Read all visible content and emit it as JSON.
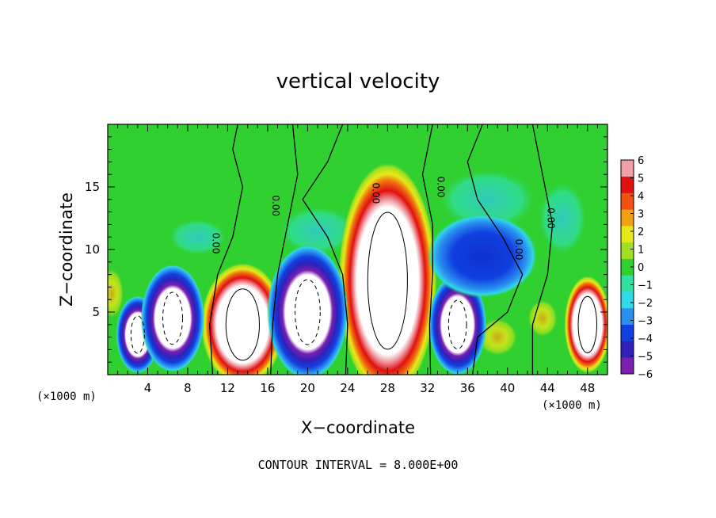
{
  "chart_data": {
    "type": "heatmap",
    "title": "vertical velocity",
    "xlabel": "X−coordinate",
    "ylabel": "Z−coordinate",
    "x_unit_label": "(×1000 m)",
    "y_unit_label": "(×1000 m)",
    "xlim": [
      0,
      50
    ],
    "ylim": [
      0,
      20
    ],
    "x_ticks": [
      4,
      8,
      12,
      16,
      20,
      24,
      28,
      32,
      36,
      40,
      44,
      48
    ],
    "y_ticks": [
      5,
      10,
      15
    ],
    "colorbar": {
      "range": [
        -6,
        6
      ],
      "ticks": [
        6,
        5,
        4,
        3,
        2,
        1,
        0,
        -1,
        -2,
        -3,
        -4,
        -5,
        -6
      ],
      "tick_labels": [
        "6",
        "5",
        "4",
        "3",
        "2",
        "1",
        "0",
        "−1",
        "−2",
        "−3",
        "−4",
        "−5",
        "−6"
      ],
      "colors": [
        "#7a1fb0",
        "#3020b8",
        "#1040e0",
        "#2a90f0",
        "#30d8e8",
        "#30e0a0",
        "#30d030",
        "#a0e020",
        "#e8e818",
        "#f0a010",
        "#f05010",
        "#e01010",
        "#f0a0a8"
      ]
    },
    "contour_labels": [
      "0.00",
      "0.00",
      "0.00",
      "0.00",
      "0.00",
      "0.00"
    ],
    "contour_interval_text": "CONTOUR INTERVAL = 8.000E+00",
    "features": [
      {
        "kind": "updraft",
        "x": 13.5,
        "z": 4.0,
        "rx": 2.7,
        "rz": 3.8
      },
      {
        "kind": "updraft",
        "x": 28.0,
        "z": 7.5,
        "rx": 3.2,
        "rz": 7.3
      },
      {
        "kind": "updraft",
        "x": 48.0,
        "z": 4.0,
        "rx": 1.5,
        "rz": 3.0
      },
      {
        "kind": "downdraft",
        "x": 3.0,
        "z": 3.2,
        "rx": 1.5,
        "rz": 2.3
      },
      {
        "kind": "downdraft",
        "x": 6.5,
        "z": 4.5,
        "rx": 2.2,
        "rz": 3.2
      },
      {
        "kind": "downdraft",
        "x": 20.0,
        "z": 5.0,
        "rx": 2.8,
        "rz": 4.0
      },
      {
        "kind": "downdraft",
        "x": 35.0,
        "z": 4.0,
        "rx": 2.0,
        "rz": 3.0
      },
      {
        "kind": "weak_downdraft",
        "x": 37.5,
        "z": 9.5,
        "rx": 3.8,
        "rz": 2.5
      }
    ]
  }
}
